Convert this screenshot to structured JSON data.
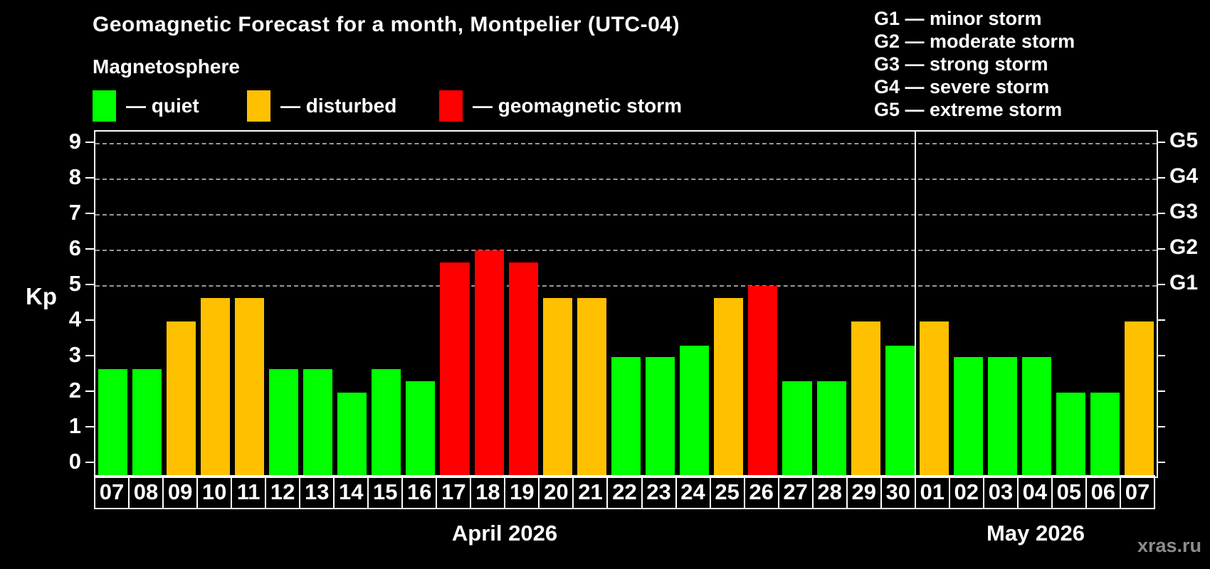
{
  "title": "Geomagnetic Forecast for a month, Montpelier (UTC-04)",
  "subtitle": "Magnetosphere",
  "legend": {
    "quiet_label": "— quiet",
    "disturbed_label": "— disturbed",
    "storm_label": "— geomagnetic storm"
  },
  "g_legend": [
    "G1 — minor storm",
    "G2 — moderate storm",
    "G3 — strong storm",
    "G4 — severe storm",
    "G5 — extreme storm"
  ],
  "y_axis": {
    "label": "Kp",
    "ticks": [
      0,
      1,
      2,
      3,
      4,
      5,
      6,
      7,
      8,
      9
    ]
  },
  "right_axis": {
    "labels": [
      {
        "text": "G1",
        "kp": 5
      },
      {
        "text": "G2",
        "kp": 6
      },
      {
        "text": "G3",
        "kp": 7
      },
      {
        "text": "G4",
        "kp": 8
      },
      {
        "text": "G5",
        "kp": 9
      }
    ]
  },
  "months": [
    {
      "name": "April 2026",
      "days": 24
    },
    {
      "name": "May 2026",
      "days": 7
    }
  ],
  "watermark": "xras.ru",
  "colors": {
    "quiet": "#00ff00",
    "disturbed": "#ffc000",
    "storm": "#ff0000",
    "axis": "#ffffff",
    "grid": "#999999",
    "background": "#000000",
    "watermark": "#8c8c8c"
  },
  "chart_data": {
    "type": "bar",
    "title": "Geomagnetic Forecast for a month, Montpelier (UTC-04)",
    "xlabel": "",
    "ylabel": "Kp",
    "ylim": [
      -0.4,
      9.4
    ],
    "grid_kp": [
      5,
      6,
      7,
      8,
      9
    ],
    "legend_position": "top",
    "bars": [
      {
        "date": "07",
        "month": "April 2026",
        "kp": 2.67,
        "level": "quiet"
      },
      {
        "date": "08",
        "month": "April 2026",
        "kp": 2.67,
        "level": "quiet"
      },
      {
        "date": "09",
        "month": "April 2026",
        "kp": 4.0,
        "level": "disturbed"
      },
      {
        "date": "10",
        "month": "April 2026",
        "kp": 4.67,
        "level": "disturbed"
      },
      {
        "date": "11",
        "month": "April 2026",
        "kp": 4.67,
        "level": "disturbed"
      },
      {
        "date": "12",
        "month": "April 2026",
        "kp": 2.67,
        "level": "quiet"
      },
      {
        "date": "13",
        "month": "April 2026",
        "kp": 2.67,
        "level": "quiet"
      },
      {
        "date": "14",
        "month": "April 2026",
        "kp": 2.0,
        "level": "quiet"
      },
      {
        "date": "15",
        "month": "April 2026",
        "kp": 2.67,
        "level": "quiet"
      },
      {
        "date": "16",
        "month": "April 2026",
        "kp": 2.33,
        "level": "quiet"
      },
      {
        "date": "17",
        "month": "April 2026",
        "kp": 5.67,
        "level": "storm"
      },
      {
        "date": "18",
        "month": "April 2026",
        "kp": 6.0,
        "level": "storm"
      },
      {
        "date": "19",
        "month": "April 2026",
        "kp": 5.67,
        "level": "storm"
      },
      {
        "date": "20",
        "month": "April 2026",
        "kp": 4.67,
        "level": "disturbed"
      },
      {
        "date": "21",
        "month": "April 2026",
        "kp": 4.67,
        "level": "disturbed"
      },
      {
        "date": "22",
        "month": "April 2026",
        "kp": 3.0,
        "level": "quiet"
      },
      {
        "date": "23",
        "month": "April 2026",
        "kp": 3.0,
        "level": "quiet"
      },
      {
        "date": "24",
        "month": "April 2026",
        "kp": 3.33,
        "level": "quiet"
      },
      {
        "date": "25",
        "month": "April 2026",
        "kp": 4.67,
        "level": "disturbed"
      },
      {
        "date": "26",
        "month": "April 2026",
        "kp": 5.0,
        "level": "storm"
      },
      {
        "date": "27",
        "month": "April 2026",
        "kp": 2.33,
        "level": "quiet"
      },
      {
        "date": "28",
        "month": "April 2026",
        "kp": 2.33,
        "level": "quiet"
      },
      {
        "date": "29",
        "month": "April 2026",
        "kp": 4.0,
        "level": "disturbed"
      },
      {
        "date": "30",
        "month": "April 2026",
        "kp": 3.33,
        "level": "quiet"
      },
      {
        "date": "01",
        "month": "May 2026",
        "kp": 4.0,
        "level": "disturbed"
      },
      {
        "date": "02",
        "month": "May 2026",
        "kp": 3.0,
        "level": "quiet"
      },
      {
        "date": "03",
        "month": "May 2026",
        "kp": 3.0,
        "level": "quiet"
      },
      {
        "date": "04",
        "month": "May 2026",
        "kp": 3.0,
        "level": "quiet"
      },
      {
        "date": "05",
        "month": "May 2026",
        "kp": 2.0,
        "level": "quiet"
      },
      {
        "date": "06",
        "month": "May 2026",
        "kp": 2.0,
        "level": "quiet"
      },
      {
        "date": "07",
        "month": "May 2026",
        "kp": 4.0,
        "level": "disturbed"
      }
    ]
  }
}
